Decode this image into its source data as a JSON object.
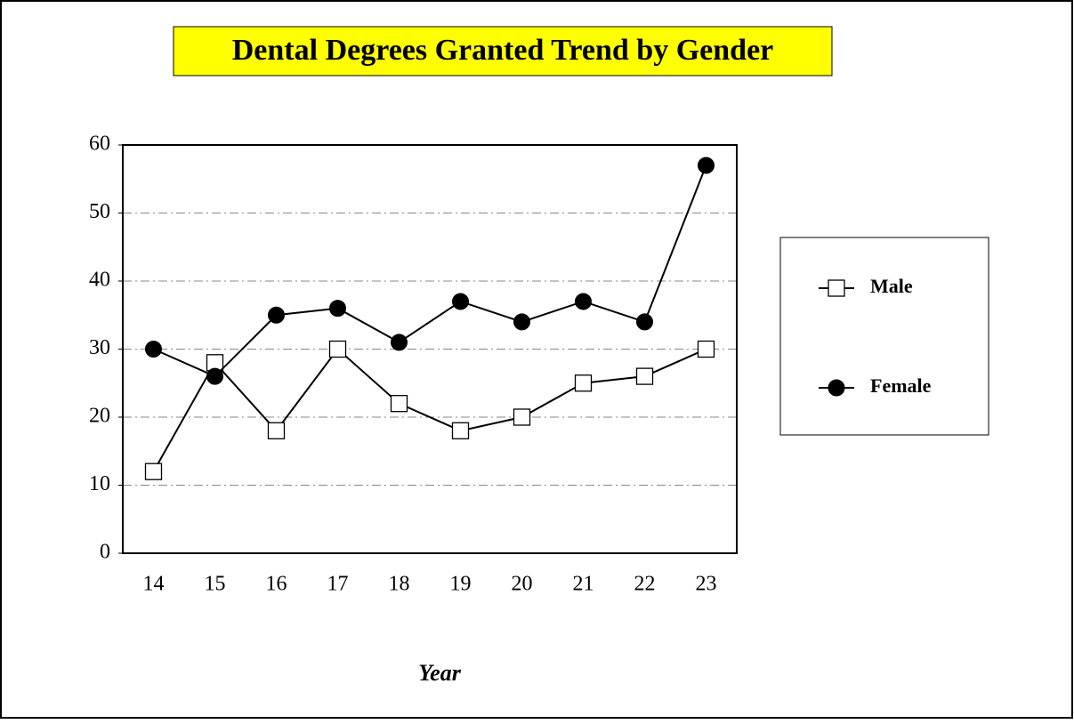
{
  "chart_data": {
    "type": "line",
    "title": "Dental Degrees Granted Trend by  Gender",
    "x_label": "Year",
    "categories": [
      "14",
      "15",
      "16",
      "17",
      "18",
      "19",
      "20",
      "21",
      "22",
      "23"
    ],
    "series": [
      {
        "name": "Male",
        "color": "#000000",
        "marker": "square",
        "values": [
          12,
          28,
          18,
          30,
          22,
          18,
          20,
          25,
          26,
          30
        ]
      },
      {
        "name": "Female",
        "color": "#000000",
        "marker": "circle",
        "values": [
          30,
          26,
          35,
          36,
          31,
          37,
          34,
          37,
          34,
          57
        ]
      }
    ],
    "ylim": [
      0,
      60
    ],
    "yticks": [
      0,
      10,
      20,
      30,
      40,
      50,
      60
    ],
    "grid": true,
    "legend": "right"
  }
}
